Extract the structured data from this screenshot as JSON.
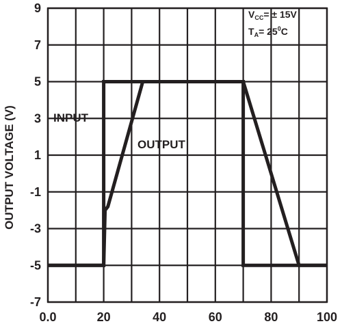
{
  "chart_data": {
    "type": "line",
    "title": "",
    "xlabel": "",
    "ylabel": "OUTPUT VOLTAGE (V)",
    "xlim": [
      0,
      100
    ],
    "ylim": [
      -7,
      9
    ],
    "xticks": [
      "0.0",
      "20",
      "40",
      "60",
      "80",
      "100"
    ],
    "xtick_values": [
      0,
      20,
      40,
      60,
      80,
      100
    ],
    "yticks": [
      "9",
      "7",
      "5",
      "3",
      "1",
      "-1",
      "-3",
      "-5",
      "-7"
    ],
    "ytick_values": [
      9,
      7,
      5,
      3,
      1,
      -1,
      -3,
      -5,
      -7
    ],
    "grid": true,
    "series": [
      {
        "name": "INPUT",
        "x": [
          0,
          20,
          20,
          70,
          70,
          100
        ],
        "y": [
          -5,
          -5,
          5,
          5,
          -5,
          -5
        ]
      },
      {
        "name": "OUTPUT",
        "x": [
          0,
          20,
          20.5,
          21.5,
          34,
          70,
          90,
          100
        ],
        "y": [
          -5,
          -5,
          -2,
          -1.8,
          5,
          5,
          -5,
          -5
        ]
      }
    ],
    "annotations": {
      "input_label": "INPUT",
      "output_label": "OUTPUT",
      "vcc_main": "V",
      "vcc_sub": "CC",
      "vcc_value": "= ± 15V",
      "ta_main": "T",
      "ta_sub": "A",
      "ta_value": "= 25",
      "ta_sup": "0",
      "ta_unit": "C"
    },
    "colors": {
      "line": "#231f20",
      "grid": "#231f20"
    }
  }
}
